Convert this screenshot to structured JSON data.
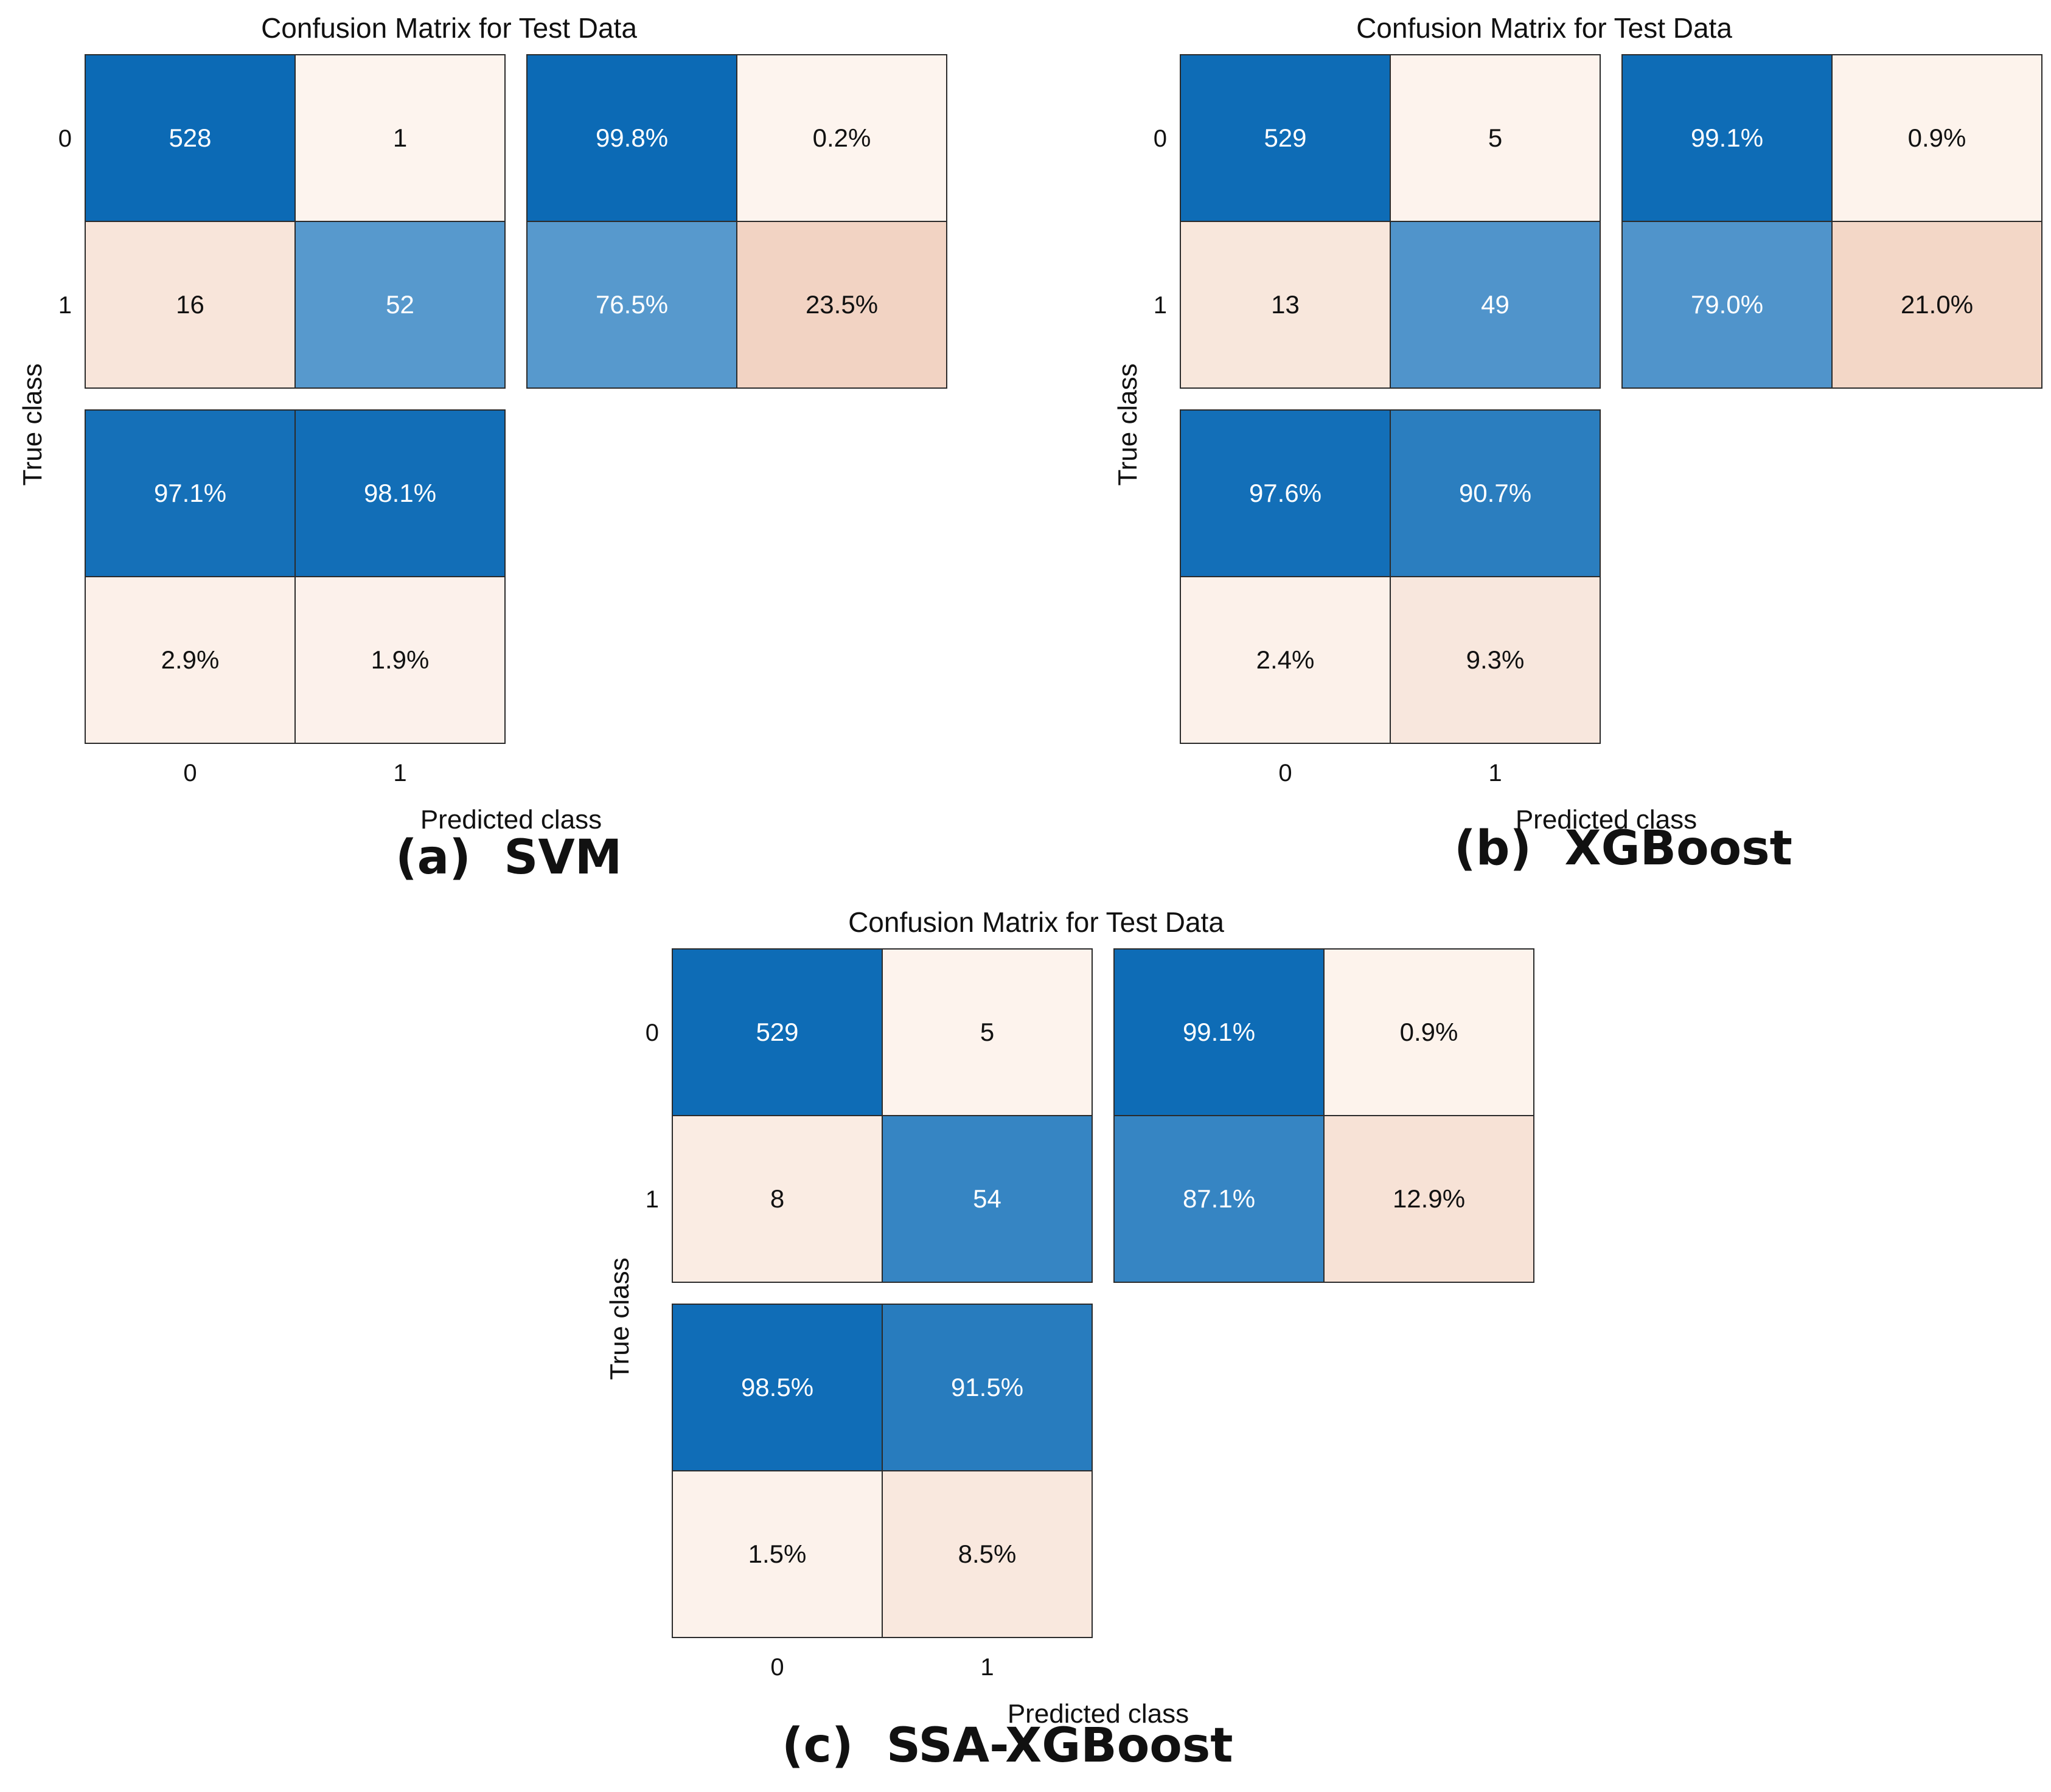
{
  "chart_data": [
    {
      "type": "heatmap",
      "title": "Confusion Matrix for Test Data",
      "xlabel": "Predicted class",
      "ylabel": "True class",
      "class_labels": [
        "0",
        "1"
      ],
      "caption_label": "(a)",
      "caption_model": "SVM",
      "counts": [
        [
          528,
          1
        ],
        [
          16,
          52
        ]
      ],
      "counts_text": [
        [
          "528",
          "1"
        ],
        [
          "16",
          "52"
        ]
      ],
      "row_summary": [
        [
          "99.8%",
          "0.2%"
        ],
        [
          "76.5%",
          "23.5%"
        ]
      ],
      "row_summary_values": [
        [
          99.8,
          0.2
        ],
        [
          76.5,
          23.5
        ]
      ],
      "column_summary": [
        [
          "97.1%",
          "98.1%"
        ],
        [
          "2.9%",
          "1.9%"
        ]
      ],
      "column_summary_values": [
        [
          97.1,
          98.1
        ],
        [
          2.9,
          1.9
        ]
      ]
    },
    {
      "type": "heatmap",
      "title": "Confusion Matrix for Test Data",
      "xlabel": "Predicted class",
      "ylabel": "True class",
      "class_labels": [
        "0",
        "1"
      ],
      "caption_label": "(b)",
      "caption_model": "XGBoost",
      "counts": [
        [
          529,
          5
        ],
        [
          13,
          49
        ]
      ],
      "counts_text": [
        [
          "529",
          "5"
        ],
        [
          "13",
          "49"
        ]
      ],
      "row_summary": [
        [
          "99.1%",
          "0.9%"
        ],
        [
          "79.0%",
          "21.0%"
        ]
      ],
      "row_summary_values": [
        [
          99.1,
          0.9
        ],
        [
          79.0,
          21.0
        ]
      ],
      "column_summary": [
        [
          "97.6%",
          "90.7%"
        ],
        [
          "2.4%",
          "9.3%"
        ]
      ],
      "column_summary_values": [
        [
          97.6,
          90.7
        ],
        [
          2.4,
          9.3
        ]
      ]
    },
    {
      "type": "heatmap",
      "title": "Confusion Matrix for Test Data",
      "xlabel": "Predicted class",
      "ylabel": "True class",
      "class_labels": [
        "0",
        "1"
      ],
      "caption_label": "(c)",
      "caption_model": "SSA-XGBoost",
      "counts": [
        [
          529,
          5
        ],
        [
          8,
          54
        ]
      ],
      "counts_text": [
        [
          "529",
          "5"
        ],
        [
          "8",
          "54"
        ]
      ],
      "row_summary": [
        [
          "99.1%",
          "0.9%"
        ],
        [
          "87.1%",
          "12.9%"
        ]
      ],
      "row_summary_values": [
        [
          99.1,
          0.9
        ],
        [
          87.1,
          12.9
        ]
      ],
      "column_summary": [
        [
          "98.5%",
          "91.5%"
        ],
        [
          "1.5%",
          "8.5%"
        ]
      ],
      "column_summary_values": [
        [
          98.5,
          91.5
        ],
        [
          1.5,
          8.5
        ]
      ]
    }
  ],
  "colors": {
    "blue_strong": "#0b6ab5",
    "orange_light": "#fdf4ee",
    "orange_strong": "#e9baa2",
    "blue_light": "#e6f1fb",
    "grid_line": "#2b2b2b",
    "text_dark": "#111111",
    "text_light": "#ffffff"
  }
}
